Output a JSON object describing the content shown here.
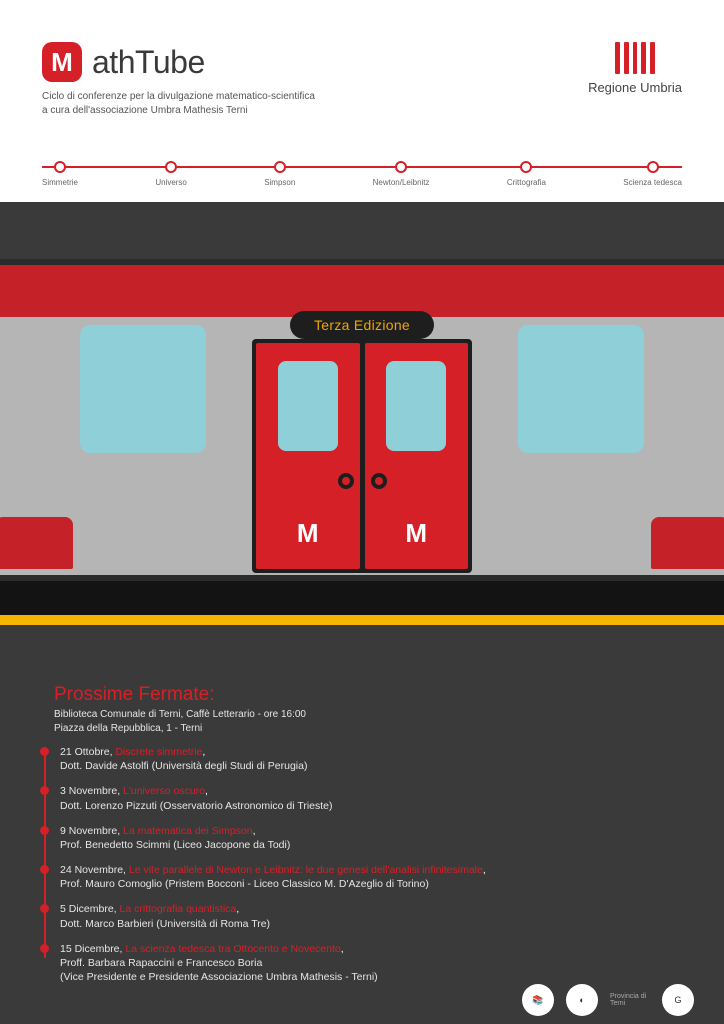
{
  "brand": {
    "badge_letter": "M",
    "name": "athTube",
    "badge_bg": "#d62027",
    "subtitle_line1": "Ciclo di conferenze per la divulgazione matematico-scientifica",
    "subtitle_line2": "a cura dell'associazione Umbra Mathesis Terni"
  },
  "region": {
    "label": "Regione Umbria"
  },
  "tube_line": {
    "color": "#d62027",
    "stops": [
      {
        "label": "Simmetrie"
      },
      {
        "label": "Universo"
      },
      {
        "label": "Simpson"
      },
      {
        "label": "Newton/Leibnitz"
      },
      {
        "label": "Crittografia"
      },
      {
        "label": "Scienza tedesca"
      }
    ]
  },
  "train": {
    "edition_label": "Terza Edizione",
    "colors": {
      "body": "#b5b5b5",
      "stripe": "#c52128",
      "door": "#d62027",
      "window": "#8fcfd8",
      "dark": "#1e1e1e",
      "zone_bg": "#3a3a3a",
      "platform_yellow": "#f5b400"
    },
    "door_letter": "M"
  },
  "schedule": {
    "title": "Prossime Fermate:",
    "venue_line1": "Biblioteca Comunale di Terni, Caffè Letterario - ore 16:00",
    "venue_line2": "Piazza della Repubblica, 1 - Terni",
    "accent_color": "#d62027",
    "text_color": "#e6e6e6",
    "bg_color": "#3a3a3a",
    "items": [
      {
        "date": "21 Ottobre",
        "topic": "Discrete simmetrie",
        "speaker": "Dott. Davide Astolfi (Università degli Studi di Perugia)"
      },
      {
        "date": "3 Novembre",
        "topic": "L'universo oscuro",
        "speaker": "Dott. Lorenzo Pizzuti (Osservatorio Astronomico di Trieste)"
      },
      {
        "date": "9 Novembre",
        "topic": "La matematica dei Simpson",
        "speaker": "Prof. Benedetto Scimmi (Liceo Jacopone da Todi)"
      },
      {
        "date": "24 Novembre",
        "topic": "Le vite parallele di Newton e Leibnitz: le due genesi dell'analisi infinitesimale",
        "speaker": "Prof. Mauro Comoglio (Pristem Bocconi - Liceo Classico M. D'Azeglio di Torino)"
      },
      {
        "date": "5 Dicembre",
        "topic": "La crittografia quantistica",
        "speaker": "Dott. Marco Barbieri (Università di Roma Tre)"
      },
      {
        "date": "15 Dicembre",
        "topic": "La scienza tedesca tra Ottocento e Novecento",
        "speaker": "Proff. Barbara Rapaccini e Francesco Boria\n(Vice Presidente e Presidente Associazione Umbra Mathesis - Terni)"
      }
    ]
  },
  "footer_logos": [
    {
      "label": "📚"
    },
    {
      "label": "◐"
    },
    {
      "label": "Provincia di Terni"
    },
    {
      "label": "G"
    }
  ]
}
